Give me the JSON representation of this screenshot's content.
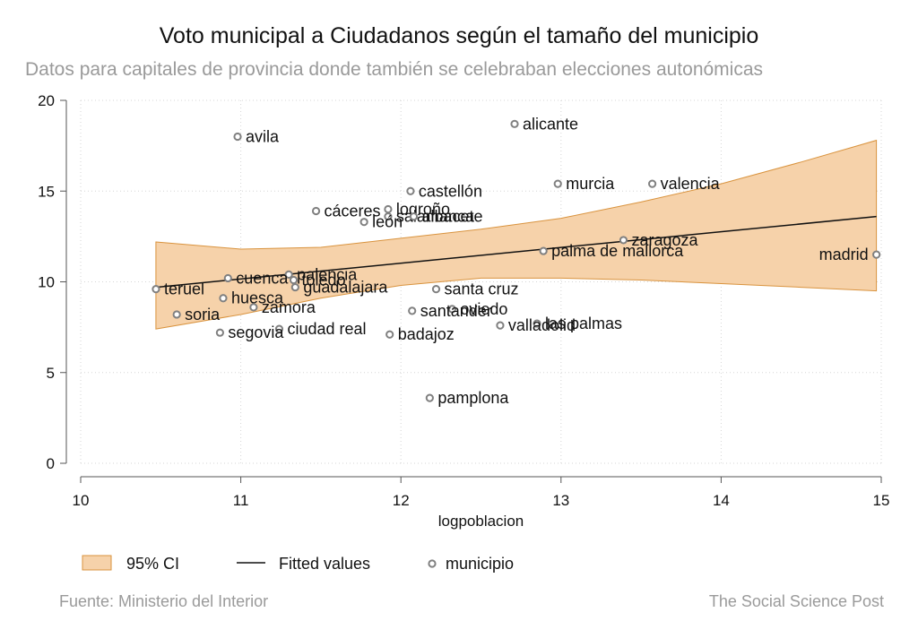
{
  "chart_data": {
    "type": "scatter",
    "title": "Voto municipal a Ciudadanos según el tamaño del municipio",
    "subtitle": "Datos para capitales de provincia donde también se celebraban elecciones autonómicas",
    "xlabel": "logpoblacion",
    "ylabel": "",
    "xlim": [
      10,
      15
    ],
    "ylim": [
      0,
      20
    ],
    "x_ticks": [
      10,
      11,
      12,
      13,
      14,
      15
    ],
    "y_ticks": [
      0,
      5,
      10,
      15,
      20
    ],
    "grid": true,
    "legend": {
      "placement": "bottom",
      "entries": [
        {
          "key": "ci",
          "label": "95% CI"
        },
        {
          "key": "fit",
          "label": "Fitted values"
        },
        {
          "key": "points",
          "label": "municipio"
        }
      ]
    },
    "colors": {
      "ci_fill": "#f6d2aa",
      "ci_stroke": "#d9933e",
      "fit_line": "#111111",
      "marker": "#808080",
      "grid": "#d6d6d6",
      "axis": "#555555"
    },
    "fitted_line": {
      "x": [
        10.47,
        14.97
      ],
      "y": [
        9.7,
        13.6
      ]
    },
    "ci_band": {
      "x": [
        10.47,
        11.0,
        11.5,
        12.0,
        12.5,
        13.0,
        13.5,
        14.0,
        14.5,
        14.97
      ],
      "upper": [
        12.2,
        11.8,
        11.9,
        12.4,
        12.9,
        13.5,
        14.4,
        15.4,
        16.6,
        17.8
      ],
      "lower": [
        7.4,
        8.2,
        9.1,
        9.8,
        10.2,
        10.2,
        10.1,
        9.9,
        9.7,
        9.5
      ]
    },
    "points": [
      {
        "label": "avila",
        "x": 10.98,
        "y": 18.0
      },
      {
        "label": "alicante",
        "x": 12.71,
        "y": 18.7
      },
      {
        "label": "castellón",
        "x": 12.06,
        "y": 15.0
      },
      {
        "label": "murcia",
        "x": 12.98,
        "y": 15.4
      },
      {
        "label": "valencia",
        "x": 13.57,
        "y": 15.4
      },
      {
        "label": "cáceres",
        "x": 11.47,
        "y": 13.9
      },
      {
        "label": "salamanca",
        "x": 11.92,
        "y": 13.6
      },
      {
        "label": "logroño",
        "x": 11.92,
        "y": 14.0
      },
      {
        "label": "albacete",
        "x": 12.08,
        "y": 13.6
      },
      {
        "label": "león",
        "x": 11.77,
        "y": 13.3
      },
      {
        "label": "zaragoza",
        "x": 13.39,
        "y": 12.3
      },
      {
        "label": "palma de mallorca",
        "x": 12.89,
        "y": 11.7
      },
      {
        "label": "madrid",
        "x": 14.97,
        "y": 11.5
      },
      {
        "label": "palencia",
        "x": 11.3,
        "y": 10.4
      },
      {
        "label": "cuenca",
        "x": 10.92,
        "y": 10.2
      },
      {
        "label": "toledo",
        "x": 11.33,
        "y": 10.1
      },
      {
        "label": "teruel",
        "x": 10.47,
        "y": 9.6
      },
      {
        "label": "guadalajara",
        "x": 11.34,
        "y": 9.7
      },
      {
        "label": "santa cruz",
        "x": 12.22,
        "y": 9.6
      },
      {
        "label": "huesca",
        "x": 10.89,
        "y": 9.1
      },
      {
        "label": "zamora",
        "x": 11.08,
        "y": 8.6
      },
      {
        "label": "oviedo",
        "x": 12.32,
        "y": 8.5
      },
      {
        "label": "santander",
        "x": 12.07,
        "y": 8.4
      },
      {
        "label": "soria",
        "x": 10.6,
        "y": 8.2
      },
      {
        "label": "las palmas",
        "x": 12.85,
        "y": 7.7
      },
      {
        "label": "valladolid",
        "x": 12.62,
        "y": 7.6
      },
      {
        "label": "ciudad real",
        "x": 11.24,
        "y": 7.4
      },
      {
        "label": "segovia",
        "x": 10.87,
        "y": 7.2
      },
      {
        "label": "badajoz",
        "x": 11.93,
        "y": 7.1
      },
      {
        "label": "pamplona",
        "x": 12.18,
        "y": 3.6
      }
    ]
  },
  "footer": {
    "source": "Fuente: Ministerio del Interior",
    "brand": "The Social Science Post"
  }
}
